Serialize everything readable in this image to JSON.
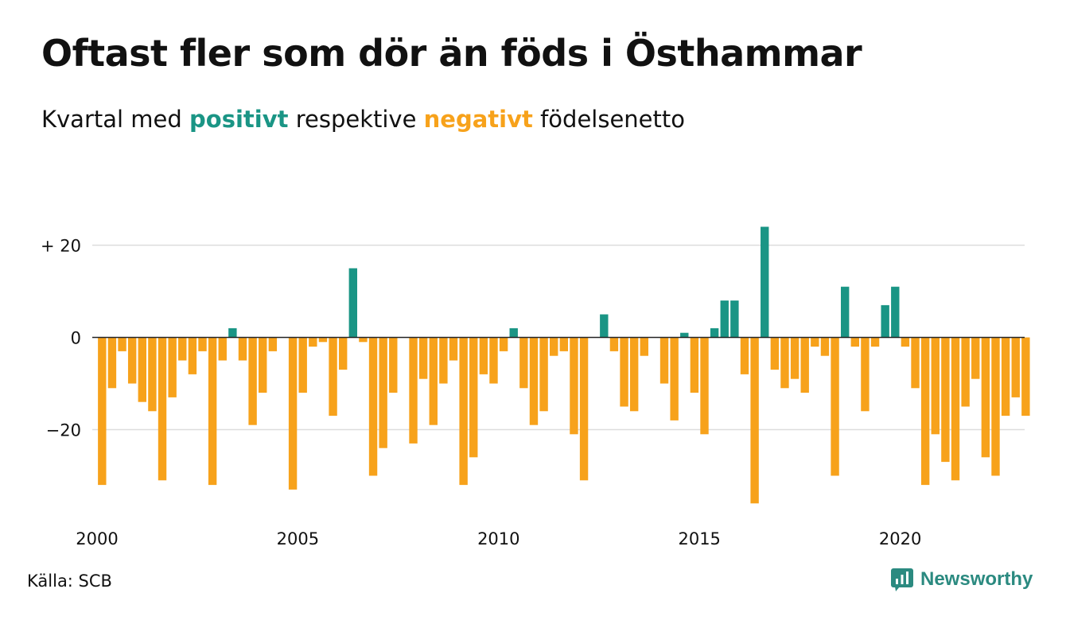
{
  "title": "Oftast fler som dör än föds i Östhammar",
  "subtitle": {
    "prefix": "Kvartal med",
    "positive": "positivt",
    "middle": "respektive",
    "negative": "negativt",
    "suffix": "födelsenetto"
  },
  "source": "Källa: SCB",
  "brand": {
    "name": "Newsworthy",
    "icon": "newsworthy-logo-icon"
  },
  "colors": {
    "positive": "#1a9585",
    "negative": "#f7a21b",
    "grid": "#dddddd",
    "axis": "#222222"
  },
  "chart_data": {
    "type": "bar",
    "x_start": "2000 Q1",
    "frequency": "quarterly",
    "ylim": [
      -37,
      24
    ],
    "yticks": [
      20,
      0,
      -20
    ],
    "ytick_labels": [
      "+ 20",
      "0",
      "−20"
    ],
    "xticks": [
      "2000",
      "2005",
      "2010",
      "2015",
      "2020"
    ],
    "grid": true,
    "values": [
      -32,
      -11,
      -3,
      -10,
      -14,
      -16,
      -31,
      -13,
      -5,
      -8,
      -3,
      -32,
      -5,
      2,
      -5,
      -19,
      -12,
      -3,
      0,
      -33,
      -12,
      -2,
      -1,
      -17,
      -7,
      15,
      -1,
      -30,
      -24,
      -12,
      0,
      -23,
      -9,
      -19,
      -10,
      -5,
      -32,
      -26,
      -8,
      -10,
      -3,
      2,
      -11,
      -19,
      -16,
      -4,
      -3,
      -21,
      -31,
      0,
      5,
      -3,
      -15,
      -16,
      -4,
      0,
      -10,
      -18,
      1,
      -12,
      -21,
      2,
      8,
      8,
      -8,
      -36,
      24,
      -7,
      -11,
      -9,
      -12,
      -2,
      -4,
      -30,
      11,
      -2,
      -16,
      -2,
      7,
      11,
      -2,
      -11,
      -32,
      -21,
      -27,
      -31,
      -15,
      -9,
      -26,
      -30,
      -17,
      -13,
      -17
    ]
  }
}
